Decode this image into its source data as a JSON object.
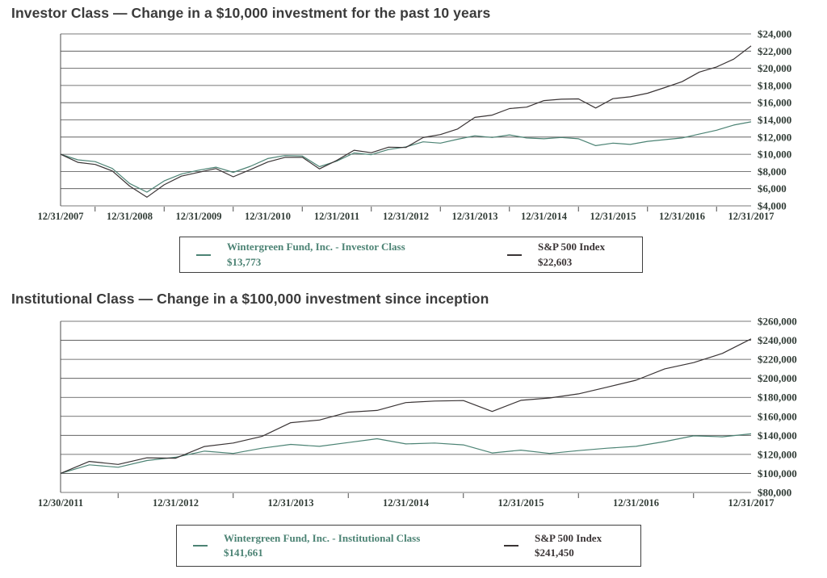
{
  "page": {
    "background": "#ffffff"
  },
  "colors": {
    "fund_line": "#4c8374",
    "index_line": "#3a3435",
    "axis_text": "#323d37",
    "grid": "#4c4c4c",
    "title_text": "#3b3b3b",
    "legend_border": "#3f3f3f"
  },
  "chart_data": [
    {
      "id": "investor",
      "type": "line",
      "title": "Investor Class — Change in a $10,000 investment for the past 10 years",
      "ylim": [
        4000,
        24000
      ],
      "ytick_step": 2000,
      "y_tick_labels": [
        "$24,000",
        "$22,000",
        "$20,000",
        "$18,000",
        "$16,000",
        "$14,000",
        "$12,000",
        "$10,000",
        "$8,000",
        "$6,000",
        "$4,000"
      ],
      "x_tick_labels": [
        "12/31/2007",
        "12/31/2008",
        "12/31/2009",
        "12/31/2010",
        "12/31/2011",
        "12/31/2012",
        "12/31/2013",
        "12/31/2014",
        "12/31/2015",
        "12/31/2016",
        "12/31/2017"
      ],
      "sampling": "quarterly",
      "grid": true,
      "legend_position": "below-center",
      "series": [
        {
          "key": "fund",
          "name": "Wintergreen Fund, Inc. - Investor Class",
          "final_value_label": "$13,773",
          "final_value": 13773,
          "color": "#4c8374",
          "values": [
            10000,
            9350,
            9150,
            8350,
            6600,
            5600,
            6900,
            7700,
            8150,
            8500,
            7900,
            8600,
            9500,
            9850,
            9800,
            8550,
            9200,
            10150,
            9950,
            10550,
            10850,
            11450,
            11300,
            11750,
            12150,
            11950,
            12250,
            11900,
            11800,
            11950,
            11800,
            11000,
            11300,
            11150,
            11500,
            11700,
            11900,
            12350,
            12800,
            13400,
            13773
          ]
        },
        {
          "key": "index",
          "name": "S&P 500 Index",
          "final_value_label": "$22,603",
          "final_value": 22603,
          "color": "#3a3435",
          "values": [
            10000,
            9060,
            8820,
            8060,
            6300,
            5000,
            6450,
            7460,
            7910,
            8340,
            7380,
            8220,
            9100,
            9640,
            9650,
            8300,
            9290,
            10470,
            10180,
            10830,
            10790,
            11940,
            12290,
            12940,
            14290,
            14550,
            15310,
            15480,
            16240,
            16400,
            16440,
            15380,
            16470,
            16690,
            17100,
            17760,
            18440,
            19560,
            20160,
            21070,
            22603
          ]
        }
      ]
    },
    {
      "id": "institutional",
      "type": "line",
      "title": "Institutional Class — Change in a $100,000 investment since inception",
      "ylim": [
        80000,
        260000
      ],
      "ytick_step": 20000,
      "y_tick_labels": [
        "$260,000",
        "$240,000",
        "$220,000",
        "$200,000",
        "$180,000",
        "$160,000",
        "$140,000",
        "$120,000",
        "$100,000",
        "$80,000"
      ],
      "x_tick_labels": [
        "12/30/2011",
        "12/31/2012",
        "12/31/2013",
        "12/31/2014",
        "12/31/2015",
        "12/31/2016",
        "12/31/2017"
      ],
      "sampling": "quarterly",
      "grid": true,
      "legend_position": "below-center",
      "series": [
        {
          "key": "fund",
          "name": "Wintergreen Fund, Inc. - Institutional Class",
          "final_value_label": "$141,661",
          "final_value": 141661,
          "color": "#4c8374",
          "values": [
            100000,
            109000,
            106500,
            113500,
            117000,
            123500,
            121000,
            126500,
            130500,
            128500,
            132500,
            136500,
            131000,
            132000,
            130000,
            121500,
            124500,
            121000,
            124000,
            126500,
            128500,
            133500,
            139500,
            138500,
            141661
          ]
        },
        {
          "key": "index",
          "name": "S&P 500 Index",
          "final_value_label": "$241,450",
          "final_value": 241450,
          "color": "#3a3435",
          "values": [
            100000,
            112600,
            109500,
            116400,
            116000,
            128300,
            132000,
            138900,
            153400,
            156200,
            164400,
            166300,
            174500,
            176100,
            176600,
            165200,
            176900,
            179300,
            183700,
            190700,
            198000,
            210000,
            216500,
            226200,
            241450
          ]
        }
      ]
    }
  ]
}
